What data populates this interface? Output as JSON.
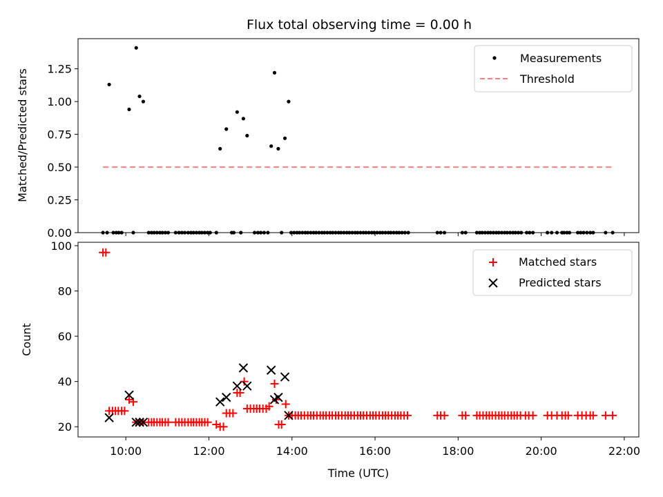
{
  "chart_data": [
    {
      "type": "scatter",
      "title": "Flux total observing time = 0.00 h",
      "xlabel": "",
      "ylabel": "Matched/Predicted stars",
      "ylim": [
        0,
        1.48
      ],
      "yticks": [
        "0.00",
        "0.25",
        "0.50",
        "0.75",
        "1.00",
        "1.25"
      ],
      "ytick_values": [
        0,
        0.25,
        0.5,
        0.75,
        1.0,
        1.25
      ],
      "legend": {
        "placement": "top-right",
        "entries": [
          "Measurements",
          "Threshold"
        ]
      },
      "series": [
        {
          "name": "Measurements",
          "color": "#000000",
          "marker": "dot",
          "nonzero_points": [
            [
              9.6,
              1.13
            ],
            [
              10.08,
              0.94
            ],
            [
              10.25,
              1.41
            ],
            [
              10.33,
              1.04
            ],
            [
              10.42,
              1.0
            ],
            [
              12.27,
              0.64
            ],
            [
              12.42,
              0.79
            ],
            [
              12.68,
              0.92
            ],
            [
              12.83,
              0.87
            ],
            [
              12.92,
              0.74
            ],
            [
              13.5,
              0.66
            ],
            [
              13.58,
              1.22
            ],
            [
              13.67,
              0.64
            ],
            [
              13.83,
              0.72
            ],
            [
              13.92,
              1.0
            ]
          ],
          "zero_x": [
            9.45,
            9.55,
            9.7,
            9.77,
            9.83,
            9.9,
            10.18,
            10.55,
            10.62,
            10.68,
            10.75,
            10.82,
            10.88,
            10.95,
            11.02,
            11.2,
            11.28,
            11.35,
            11.42,
            11.5,
            11.57,
            11.63,
            11.7,
            11.77,
            11.83,
            11.9,
            11.97,
            12.03,
            12.18,
            12.55,
            12.6,
            12.77,
            13.1,
            13.18,
            13.25,
            13.33,
            13.42,
            13.75,
            13.98,
            14.05,
            14.12,
            14.18,
            14.25,
            14.32,
            14.38,
            14.45,
            14.52,
            14.58,
            14.65,
            14.72,
            14.78,
            14.85,
            14.92,
            14.98,
            15.05,
            15.12,
            15.18,
            15.25,
            15.32,
            15.38,
            15.45,
            15.52,
            15.58,
            15.65,
            15.72,
            15.78,
            15.85,
            15.92,
            15.98,
            16.05,
            16.12,
            16.18,
            16.25,
            16.32,
            16.38,
            16.45,
            16.52,
            16.58,
            16.65,
            16.72,
            16.8,
            17.5,
            17.58,
            17.67,
            18.1,
            18.18,
            18.45,
            18.52,
            18.58,
            18.65,
            18.72,
            18.78,
            18.85,
            18.92,
            18.98,
            19.05,
            19.12,
            19.18,
            19.25,
            19.32,
            19.38,
            19.45,
            19.52,
            19.65,
            19.72,
            19.8,
            20.15,
            20.25,
            20.38,
            20.5,
            20.55,
            20.62,
            20.68,
            20.88,
            20.95,
            21.02,
            21.1,
            21.18,
            21.25,
            21.55,
            21.72
          ]
        },
        {
          "name": "Threshold",
          "color": "#ff7f7f",
          "style": "dashed",
          "x": [
            9.45,
            21.75
          ],
          "y": [
            0.5,
            0.5
          ]
        }
      ]
    },
    {
      "type": "scatter",
      "title": "",
      "xlabel": "Time (UTC)",
      "ylabel": "Count",
      "ylim": [
        15.5,
        101.5
      ],
      "yticks": [
        "20",
        "40",
        "60",
        "80",
        "100"
      ],
      "ytick_values": [
        20,
        40,
        60,
        80,
        100
      ],
      "xlim": [
        8.85,
        22.35
      ],
      "xticks": [
        "10:00",
        "12:00",
        "14:00",
        "16:00",
        "18:00",
        "20:00",
        "22:00"
      ],
      "xtick_values": [
        10,
        12,
        14,
        16,
        18,
        20,
        22
      ],
      "legend": {
        "placement": "top-right",
        "entries": [
          "Matched stars",
          "Predicted stars"
        ]
      },
      "series": [
        {
          "name": "Matched stars",
          "color": "#ff0000",
          "marker": "plus",
          "points": [
            [
              9.45,
              97
            ],
            [
              9.52,
              97
            ],
            [
              9.6,
              27
            ],
            [
              9.68,
              27
            ],
            [
              9.75,
              27
            ],
            [
              9.82,
              27
            ],
            [
              9.9,
              27
            ],
            [
              9.97,
              27
            ],
            [
              10.08,
              32
            ],
            [
              10.18,
              31
            ],
            [
              10.25,
              22
            ],
            [
              10.33,
              22
            ],
            [
              10.42,
              22
            ],
            [
              10.55,
              22
            ],
            [
              10.62,
              22
            ],
            [
              10.68,
              22
            ],
            [
              10.75,
              22
            ],
            [
              10.82,
              22
            ],
            [
              10.88,
              22
            ],
            [
              10.95,
              22
            ],
            [
              11.02,
              22
            ],
            [
              11.2,
              22
            ],
            [
              11.28,
              22
            ],
            [
              11.35,
              22
            ],
            [
              11.42,
              22
            ],
            [
              11.5,
              22
            ],
            [
              11.57,
              22
            ],
            [
              11.63,
              22
            ],
            [
              11.7,
              22
            ],
            [
              11.77,
              22
            ],
            [
              11.83,
              22
            ],
            [
              11.9,
              22
            ],
            [
              11.97,
              22
            ],
            [
              12.18,
              21
            ],
            [
              12.27,
              20
            ],
            [
              12.35,
              20
            ],
            [
              12.42,
              26
            ],
            [
              12.5,
              26
            ],
            [
              12.58,
              26
            ],
            [
              12.68,
              35
            ],
            [
              12.75,
              35
            ],
            [
              12.85,
              40
            ],
            [
              12.92,
              28
            ],
            [
              13.0,
              28
            ],
            [
              13.08,
              28
            ],
            [
              13.15,
              28
            ],
            [
              13.22,
              28
            ],
            [
              13.3,
              28
            ],
            [
              13.38,
              28
            ],
            [
              13.45,
              29
            ],
            [
              13.58,
              39
            ],
            [
              13.62,
              32
            ],
            [
              13.68,
              21
            ],
            [
              13.75,
              21
            ],
            [
              13.85,
              30
            ],
            [
              13.92,
              25
            ],
            [
              14.0,
              25
            ],
            [
              14.08,
              25
            ],
            [
              14.15,
              25
            ],
            [
              14.22,
              25
            ],
            [
              14.3,
              25
            ],
            [
              14.38,
              25
            ],
            [
              14.45,
              25
            ],
            [
              14.52,
              25
            ],
            [
              14.6,
              25
            ],
            [
              14.68,
              25
            ],
            [
              14.75,
              25
            ],
            [
              14.82,
              25
            ],
            [
              14.9,
              25
            ],
            [
              14.97,
              25
            ],
            [
              15.05,
              25
            ],
            [
              15.12,
              25
            ],
            [
              15.2,
              25
            ],
            [
              15.28,
              25
            ],
            [
              15.35,
              25
            ],
            [
              15.42,
              25
            ],
            [
              15.5,
              25
            ],
            [
              15.58,
              25
            ],
            [
              15.65,
              25
            ],
            [
              15.72,
              25
            ],
            [
              15.8,
              25
            ],
            [
              15.88,
              25
            ],
            [
              15.95,
              25
            ],
            [
              16.02,
              25
            ],
            [
              16.1,
              25
            ],
            [
              16.18,
              25
            ],
            [
              16.25,
              25
            ],
            [
              16.32,
              25
            ],
            [
              16.4,
              25
            ],
            [
              16.48,
              25
            ],
            [
              16.55,
              25
            ],
            [
              16.62,
              25
            ],
            [
              16.7,
              25
            ],
            [
              16.78,
              25
            ],
            [
              17.5,
              25
            ],
            [
              17.58,
              25
            ],
            [
              17.67,
              25
            ],
            [
              18.1,
              25
            ],
            [
              18.18,
              25
            ],
            [
              18.45,
              25
            ],
            [
              18.52,
              25
            ],
            [
              18.6,
              25
            ],
            [
              18.68,
              25
            ],
            [
              18.75,
              25
            ],
            [
              18.82,
              25
            ],
            [
              18.9,
              25
            ],
            [
              18.98,
              25
            ],
            [
              19.05,
              25
            ],
            [
              19.12,
              25
            ],
            [
              19.2,
              25
            ],
            [
              19.28,
              25
            ],
            [
              19.35,
              25
            ],
            [
              19.42,
              25
            ],
            [
              19.5,
              25
            ],
            [
              19.62,
              25
            ],
            [
              19.7,
              25
            ],
            [
              19.8,
              25
            ],
            [
              20.15,
              25
            ],
            [
              20.25,
              25
            ],
            [
              20.38,
              25
            ],
            [
              20.5,
              25
            ],
            [
              20.58,
              25
            ],
            [
              20.65,
              25
            ],
            [
              20.88,
              25
            ],
            [
              20.98,
              25
            ],
            [
              21.08,
              25
            ],
            [
              21.18,
              25
            ],
            [
              21.25,
              25
            ],
            [
              21.55,
              25
            ],
            [
              21.72,
              25
            ]
          ]
        },
        {
          "name": "Predicted stars",
          "color": "#000000",
          "marker": "x",
          "points": [
            [
              9.6,
              24
            ],
            [
              10.08,
              34
            ],
            [
              10.25,
              22
            ],
            [
              10.33,
              22
            ],
            [
              10.42,
              22
            ],
            [
              12.27,
              31
            ],
            [
              12.42,
              33
            ],
            [
              12.68,
              38
            ],
            [
              12.83,
              46
            ],
            [
              12.92,
              38
            ],
            [
              13.5,
              45
            ],
            [
              13.58,
              32
            ],
            [
              13.67,
              33
            ],
            [
              13.83,
              42
            ],
            [
              13.92,
              25
            ]
          ]
        }
      ]
    }
  ]
}
